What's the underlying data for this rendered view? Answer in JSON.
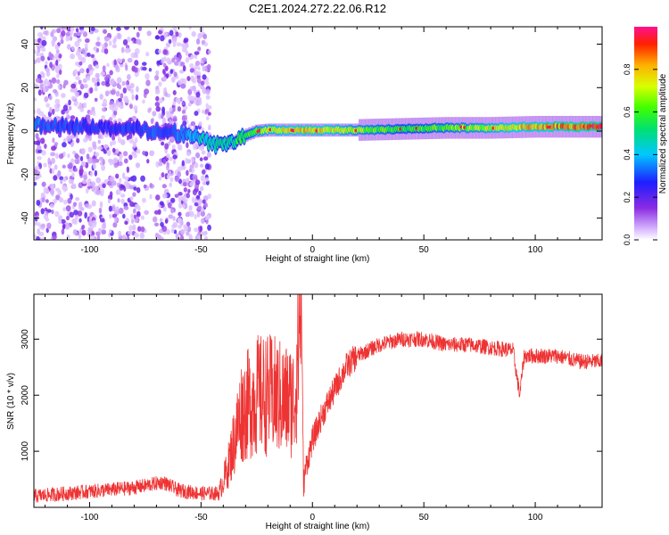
{
  "title": "C2E1.2024.272.22.06.R12",
  "colors": {
    "snr_line": "#ee3333",
    "axis": "#000000",
    "spectrum_scatter": "#8a2be2"
  },
  "chart_data": [
    {
      "type": "heatmap",
      "xlabel": "Height of straight line (km)",
      "ylabel": "Frequency (Hz)",
      "xlim": [
        -125,
        130
      ],
      "ylim": [
        -50,
        48
      ],
      "x_ticks": [
        -100,
        -50,
        0,
        50,
        100
      ],
      "x_tick_labels": [
        "-100",
        "-50",
        "0",
        "50",
        "100"
      ],
      "y_ticks": [
        -40,
        -20,
        0,
        20,
        40
      ],
      "y_tick_labels": [
        "-40",
        "-20",
        "0",
        "20",
        "40"
      ],
      "colorbar": {
        "label": "Normalized spectral amplitude",
        "range": [
          0,
          1
        ],
        "ticks": [
          0.0,
          0.2,
          0.4,
          0.6,
          0.8
        ],
        "tick_labels": [
          "0.0",
          "0.2",
          "0.4",
          "0.6",
          "0.8"
        ],
        "colormap": "rainbow"
      },
      "scatter_region_x": [
        -125,
        -46
      ],
      "ridge_x": [
        -125,
        -100,
        -80,
        -60,
        -50,
        -45,
        -40,
        -35,
        -30,
        -25,
        -20,
        -10,
        0,
        20,
        40,
        60,
        80,
        100,
        130
      ],
      "ridge_frequency": [
        3,
        2,
        1,
        -1,
        -3,
        -6,
        -6,
        -5,
        -2,
        0,
        0.5,
        0.5,
        0.5,
        0.5,
        1,
        1.5,
        1.5,
        2,
        2
      ],
      "ridge_amplitude": [
        0.35,
        0.3,
        0.3,
        0.35,
        0.45,
        0.5,
        0.5,
        0.55,
        0.6,
        0.7,
        0.75,
        0.8,
        0.85,
        0.7,
        0.6,
        0.65,
        0.75,
        0.85,
        0.95
      ]
    },
    {
      "type": "line",
      "xlabel": "Height of straight line (km)",
      "ylabel": "SNR (10 * v/v)",
      "xlim": [
        -125,
        130
      ],
      "ylim": [
        0,
        3800
      ],
      "x_ticks": [
        -100,
        -50,
        0,
        50,
        100
      ],
      "x_tick_labels": [
        "-100",
        "-50",
        "0",
        "50",
        "100"
      ],
      "y_ticks": [
        1000,
        2000,
        3000
      ],
      "y_tick_labels": [
        "1000",
        "2000",
        "3000"
      ],
      "series": [
        {
          "x": [
            -125,
            -110,
            -95,
            -80,
            -67,
            -60,
            -50,
            -42,
            -38,
            -32,
            -25,
            -18,
            -12,
            -8,
            -5,
            -4,
            -3,
            0,
            5,
            10,
            15,
            20,
            30,
            40,
            50,
            60,
            70,
            80,
            90,
            93,
            95,
            100,
            110,
            120,
            130
          ],
          "values": [
            200,
            250,
            300,
            350,
            450,
            300,
            250,
            250,
            700,
            1700,
            2000,
            2000,
            1900,
            1900,
            3800,
            400,
            700,
            1200,
            1700,
            2100,
            2500,
            2700,
            2900,
            3000,
            3000,
            2900,
            2900,
            2850,
            2800,
            2000,
            2700,
            2700,
            2700,
            2600,
            2600
          ]
        }
      ]
    }
  ]
}
